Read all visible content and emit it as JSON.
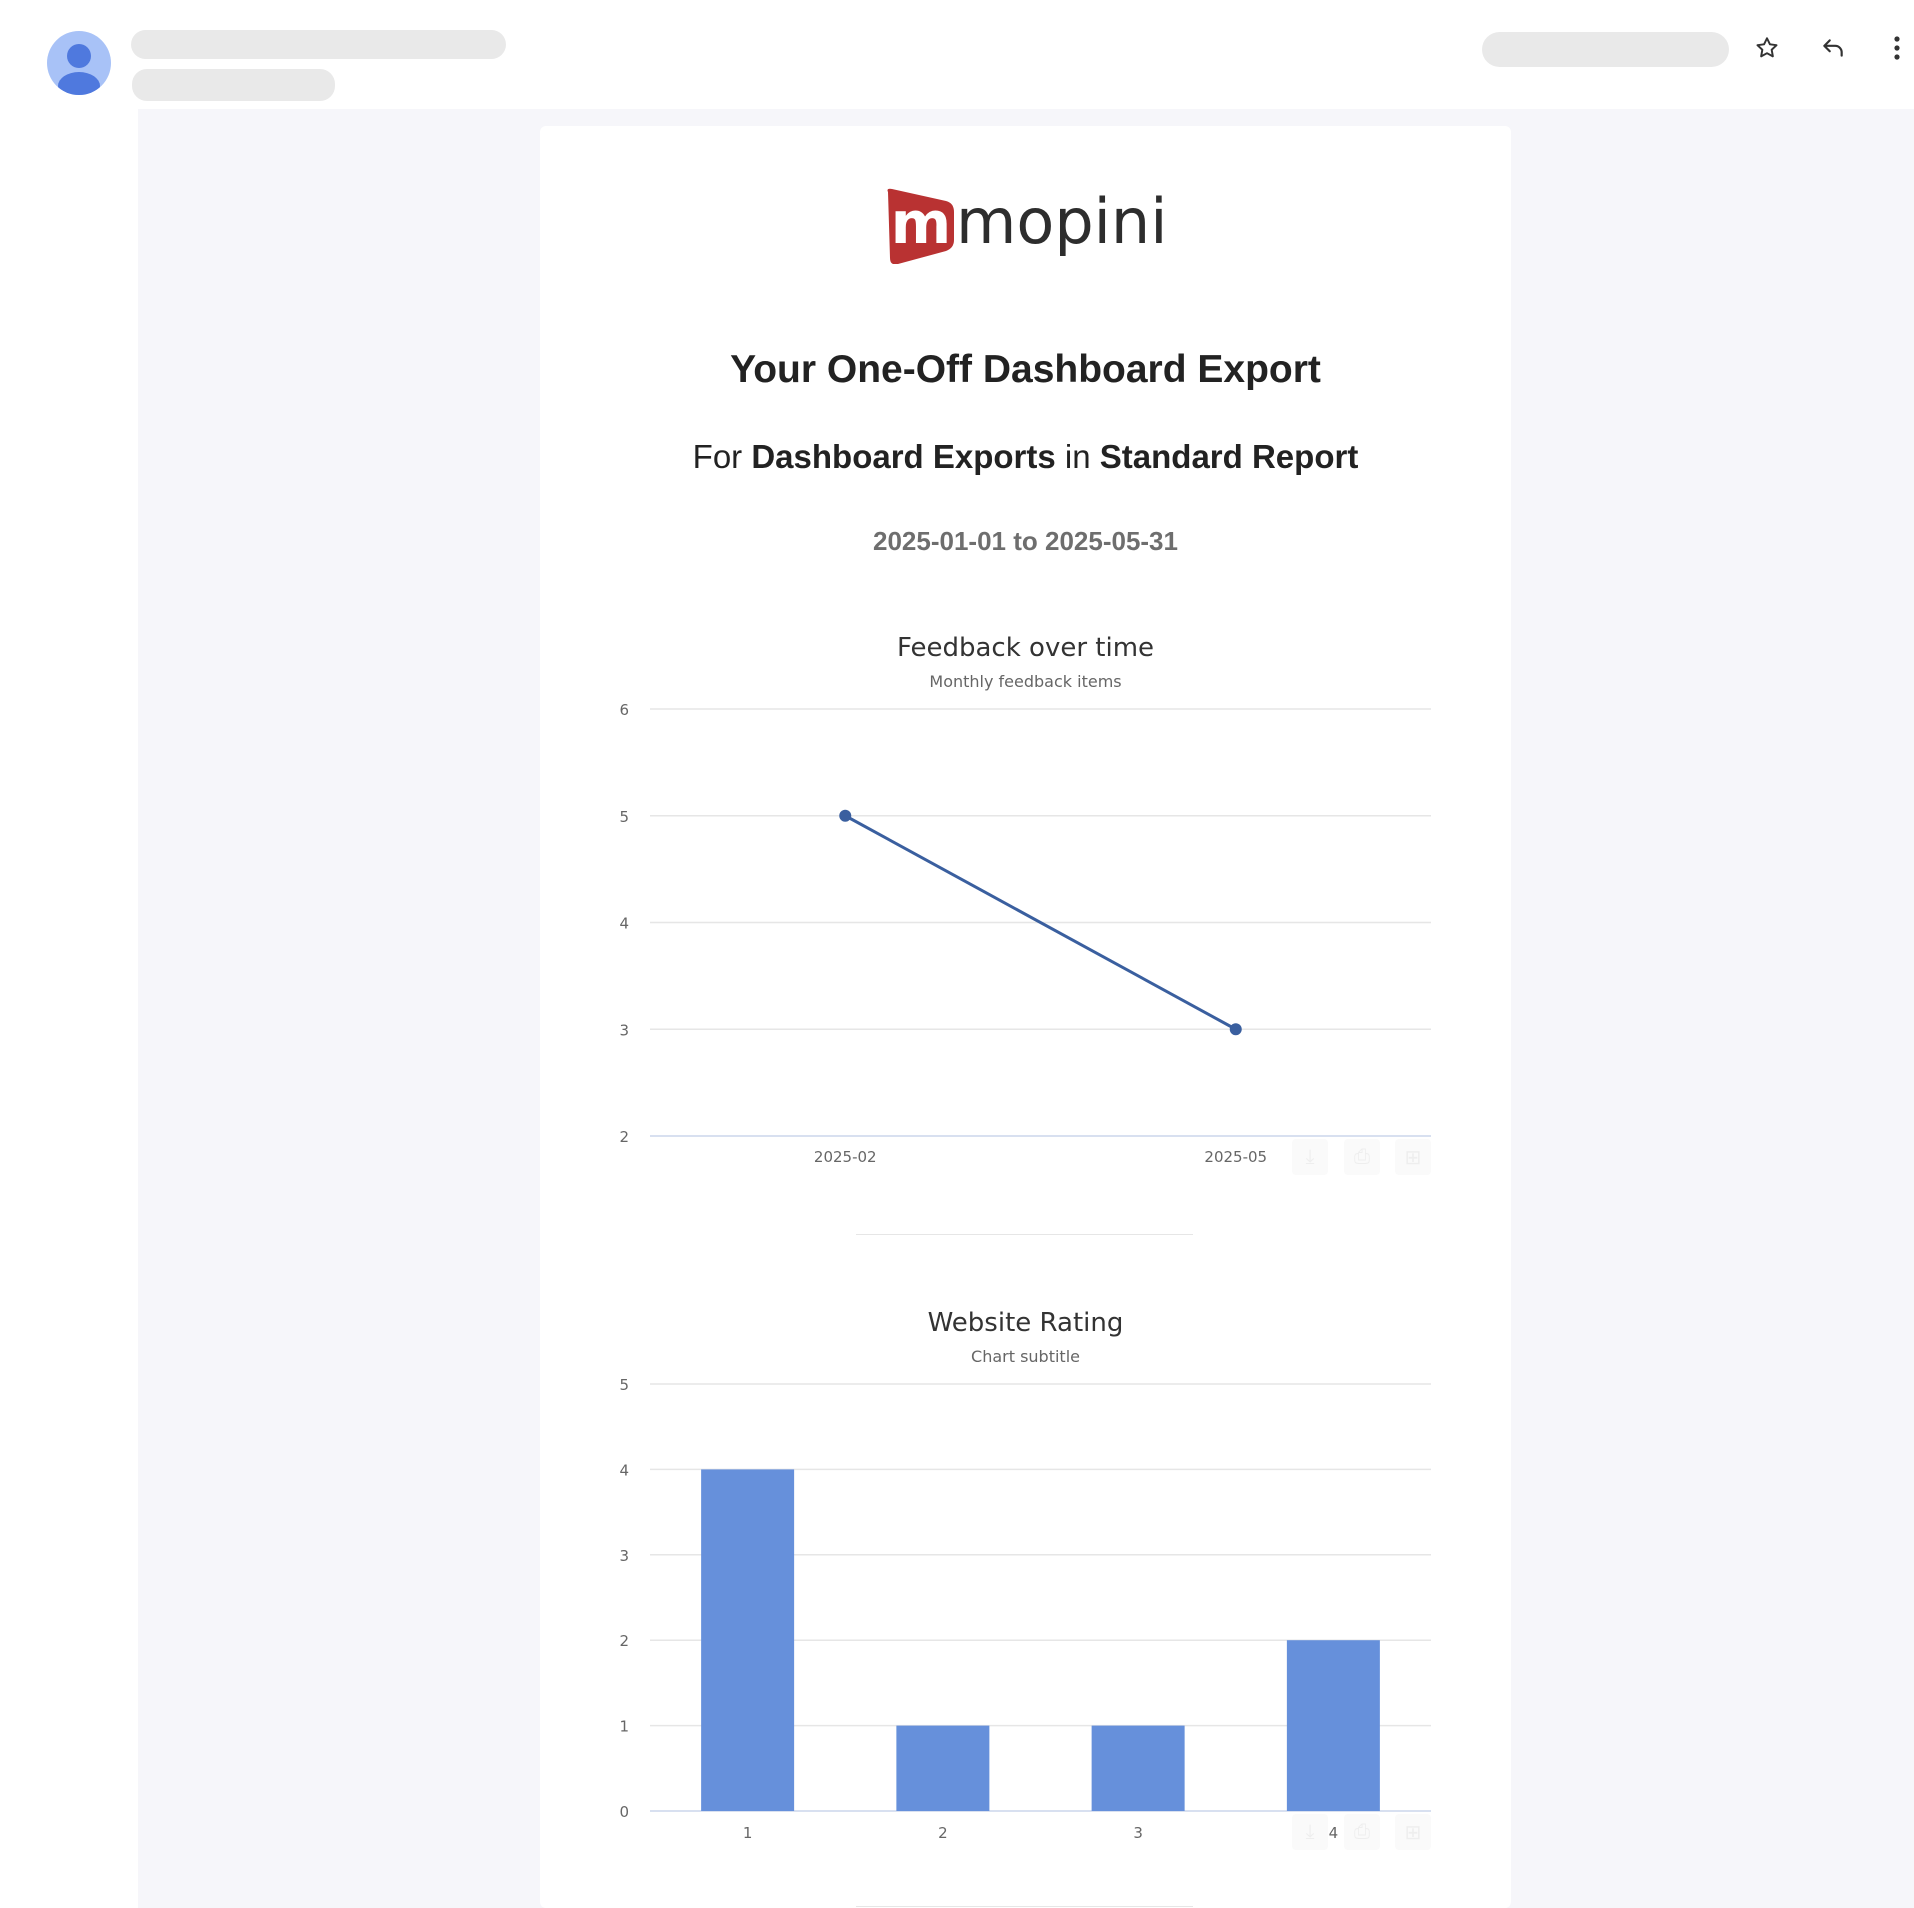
{
  "header": {
    "icons": [
      "avatar-icon",
      "star-icon",
      "reply-icon",
      "more-vertical-icon"
    ]
  },
  "email": {
    "logo_text": "mopinion",
    "title": "Your One-Off Dashboard Export",
    "subtitle": {
      "prefix": "For",
      "dashboard": "Dashboard Exports",
      "middle": "in",
      "report": "Standard Report"
    },
    "date_range": "2025-01-01 to 2025-05-31"
  },
  "colors": {
    "brand_red": "#b93232",
    "line": "#3a5f9f",
    "bar": "#6690db"
  },
  "chart_data": [
    {
      "type": "line",
      "title": "Feedback over time",
      "subtitle": "Monthly feedback items",
      "categories": [
        "2025-02",
        "2025-05"
      ],
      "values": [
        5,
        3
      ],
      "ylim": [
        2,
        6
      ],
      "yticks": [
        "2",
        "3",
        "4",
        "5",
        "6"
      ],
      "grid": true,
      "legend": "none"
    },
    {
      "type": "bar",
      "title": "Website Rating",
      "subtitle": "Chart subtitle",
      "categories": [
        "1",
        "2",
        "3",
        "4"
      ],
      "values": [
        4,
        1,
        1,
        2
      ],
      "ylim": [
        0,
        5
      ],
      "yticks": [
        "0",
        "1",
        "2",
        "3",
        "4",
        "5"
      ],
      "grid": true,
      "legend": "none"
    }
  ]
}
